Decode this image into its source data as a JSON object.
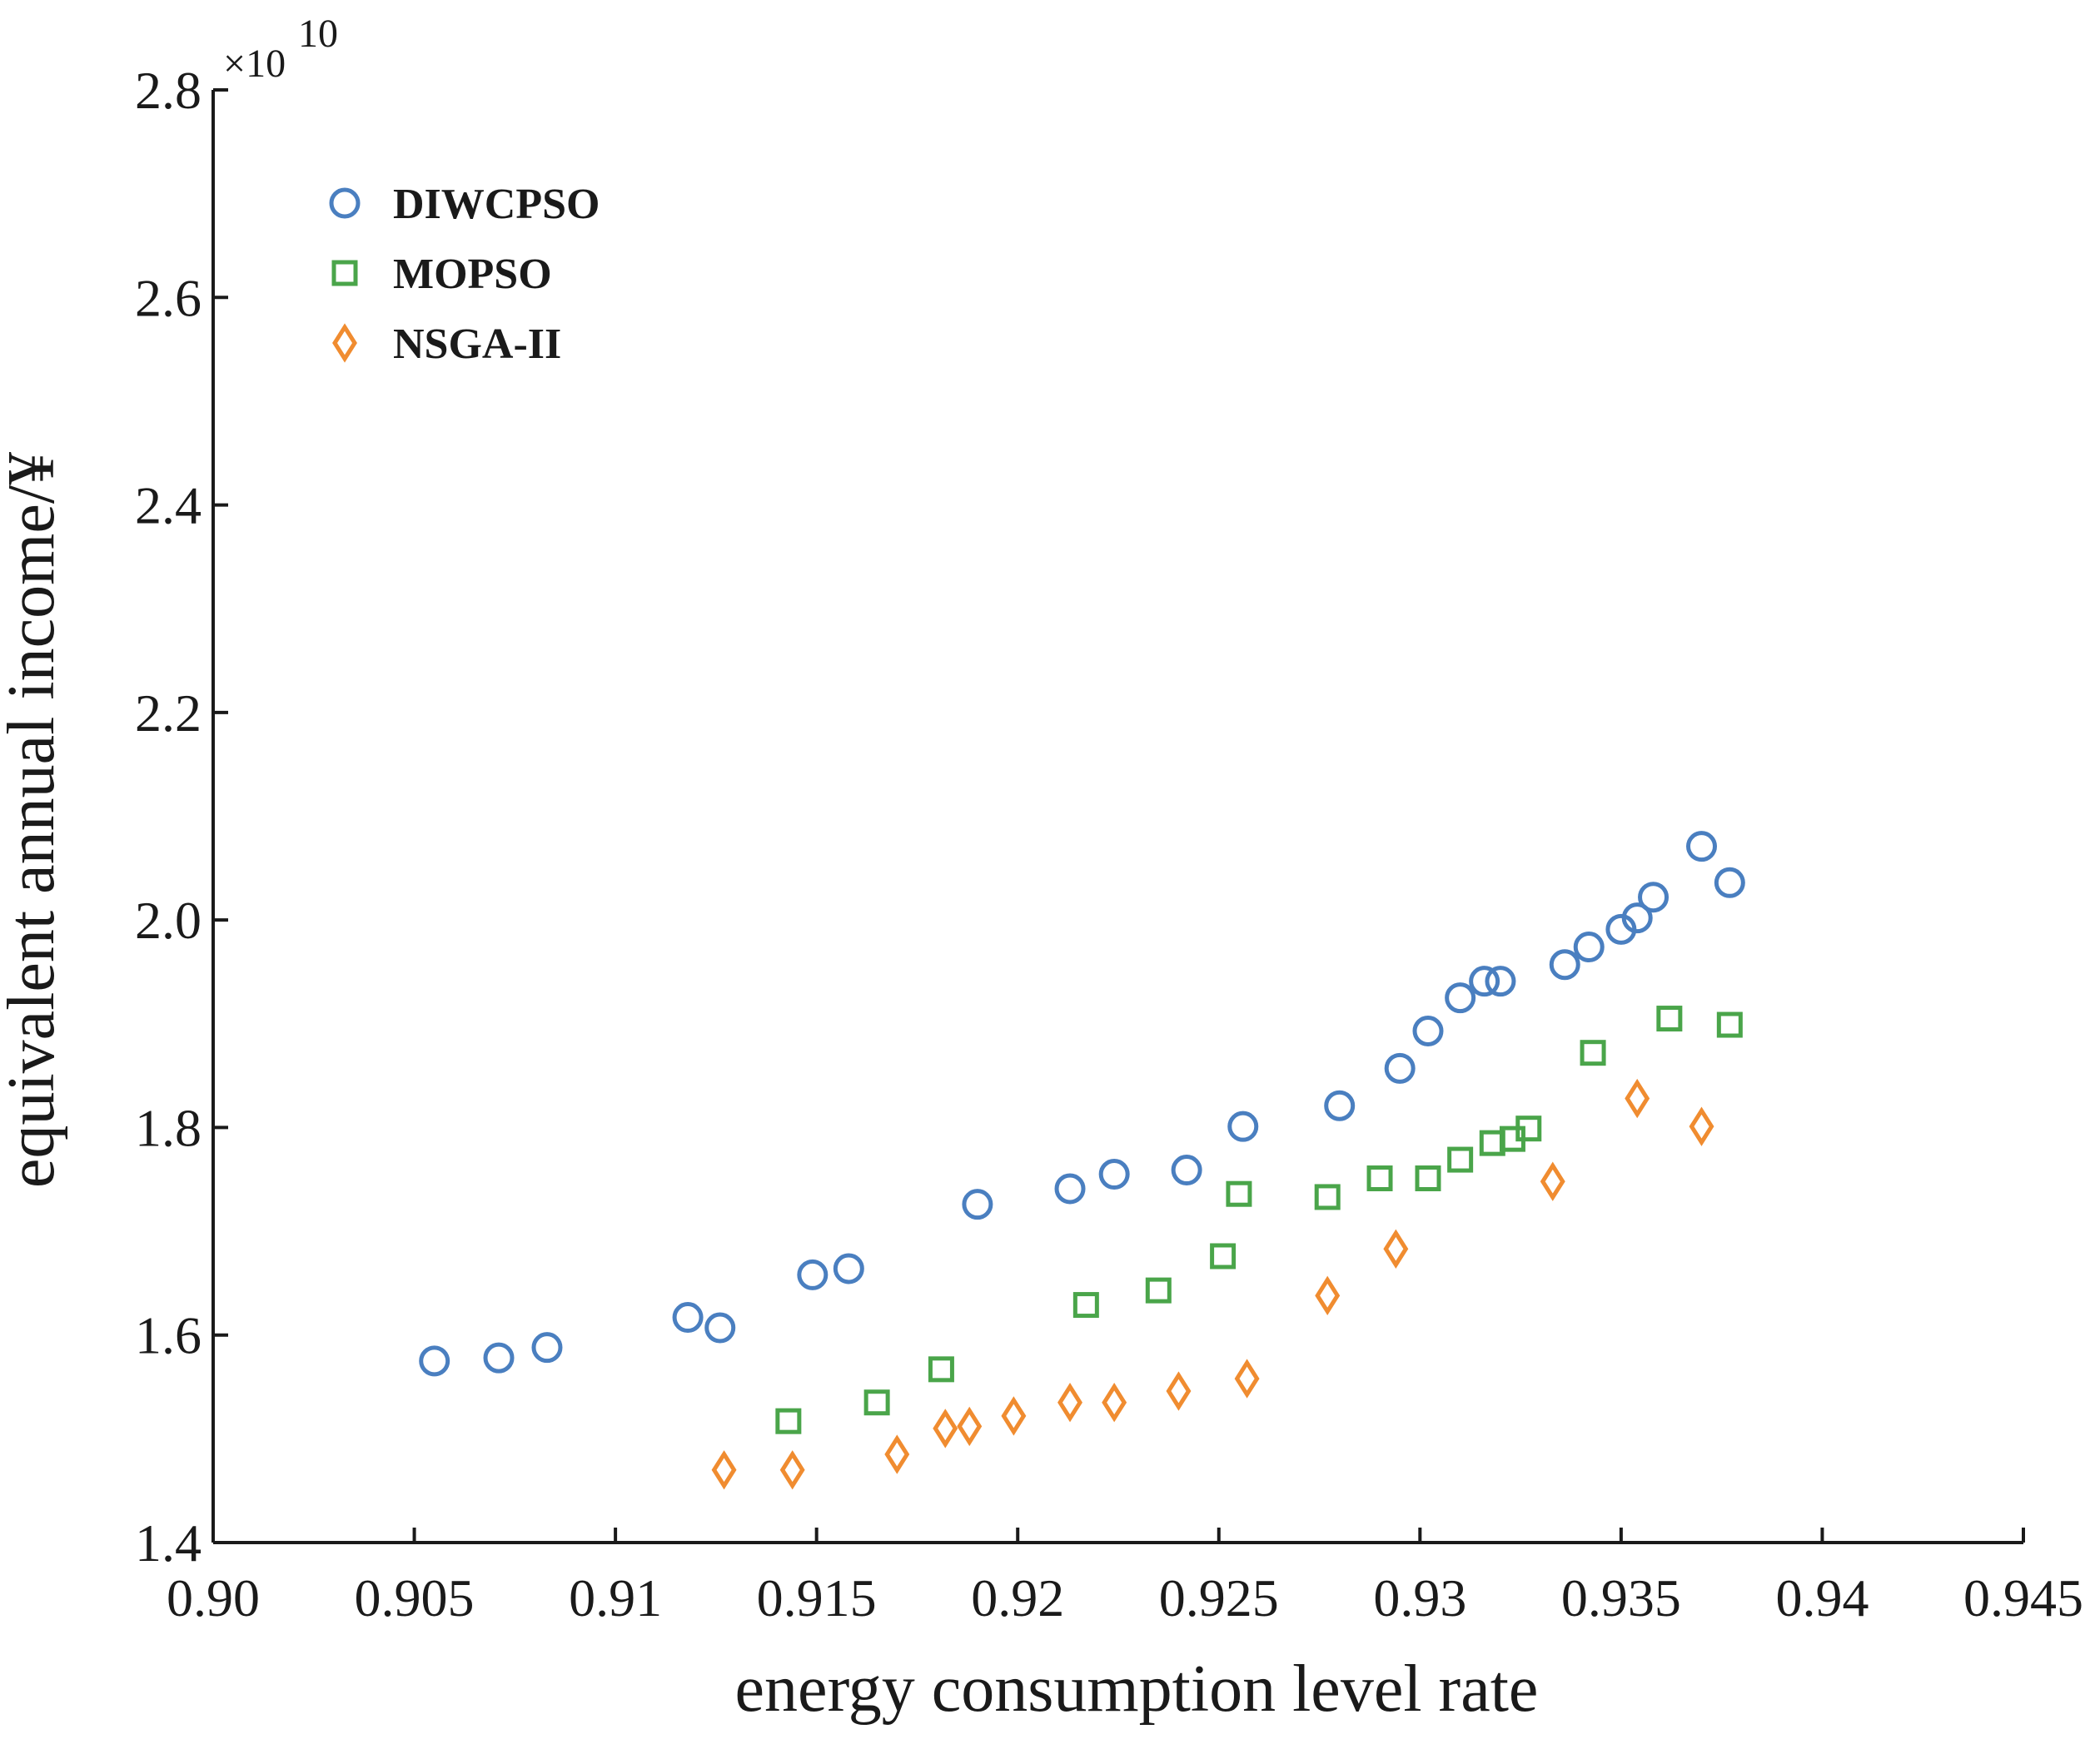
{
  "chart_data": {
    "type": "scatter",
    "title": "",
    "xlabel": "energy consumption level rate",
    "ylabel": "equivalent annual income/¥",
    "y_multiplier_base": "×10",
    "y_multiplier_exponent": "10",
    "xlim": [
      0.9,
      0.945
    ],
    "ylim": [
      1.4,
      2.8
    ],
    "x_ticks": [
      0.9,
      0.905,
      0.91,
      0.915,
      0.92,
      0.925,
      0.93,
      0.935,
      0.94,
      0.945
    ],
    "x_tick_labels": [
      "0.90",
      "0.905",
      "0.91",
      "0.915",
      "0.92",
      "0.925",
      "0.93",
      "0.935",
      "0.94",
      "0.945"
    ],
    "y_ticks": [
      1.4,
      1.6,
      1.8,
      2.0,
      2.2,
      2.4,
      2.6,
      2.8
    ],
    "y_tick_labels": [
      "1.4",
      "1.6",
      "1.8",
      "2.0",
      "2.2",
      "2.4",
      "2.6",
      "2.8"
    ],
    "grid": false,
    "legend_position": "top-left",
    "series": [
      {
        "name": "DIWCPSO",
        "marker": "circle",
        "color": "#4a7fc0",
        "points": [
          [
            0.9055,
            1.575
          ],
          [
            0.9071,
            1.578
          ],
          [
            0.9083,
            1.588
          ],
          [
            0.9118,
            1.617
          ],
          [
            0.9126,
            1.607
          ],
          [
            0.9149,
            1.658
          ],
          [
            0.9158,
            1.664
          ],
          [
            0.919,
            1.726
          ],
          [
            0.9213,
            1.741
          ],
          [
            0.9224,
            1.755
          ],
          [
            0.9242,
            1.759
          ],
          [
            0.9256,
            1.801
          ],
          [
            0.928,
            1.821
          ],
          [
            0.9295,
            1.857
          ],
          [
            0.9302,
            1.893
          ],
          [
            0.931,
            1.925
          ],
          [
            0.9316,
            1.941
          ],
          [
            0.932,
            1.941
          ],
          [
            0.9336,
            1.957
          ],
          [
            0.9342,
            1.974
          ],
          [
            0.935,
            1.991
          ],
          [
            0.9354,
            2.002
          ],
          [
            0.9358,
            2.022
          ],
          [
            0.937,
            2.071
          ],
          [
            0.9377,
            2.036
          ]
        ]
      },
      {
        "name": "MOPSO",
        "marker": "square",
        "color": "#4aa54a",
        "points": [
          [
            0.9143,
            1.517
          ],
          [
            0.9165,
            1.535
          ],
          [
            0.9181,
            1.567
          ],
          [
            0.9217,
            1.629
          ],
          [
            0.9235,
            1.643
          ],
          [
            0.9251,
            1.676
          ],
          [
            0.9255,
            1.736
          ],
          [
            0.9277,
            1.733
          ],
          [
            0.929,
            1.751
          ],
          [
            0.9302,
            1.751
          ],
          [
            0.931,
            1.769
          ],
          [
            0.9318,
            1.785
          ],
          [
            0.9323,
            1.789
          ],
          [
            0.9327,
            1.799
          ],
          [
            0.9343,
            1.872
          ],
          [
            0.9362,
            1.905
          ],
          [
            0.9377,
            1.899
          ]
        ]
      },
      {
        "name": "NSGA-II",
        "marker": "diamond",
        "color": "#f08c30",
        "points": [
          [
            0.9127,
            1.47
          ],
          [
            0.9144,
            1.47
          ],
          [
            0.917,
            1.485
          ],
          [
            0.9182,
            1.51
          ],
          [
            0.9188,
            1.512
          ],
          [
            0.9199,
            1.522
          ],
          [
            0.9213,
            1.535
          ],
          [
            0.9224,
            1.535
          ],
          [
            0.924,
            1.546
          ],
          [
            0.9257,
            1.558
          ],
          [
            0.9277,
            1.638
          ],
          [
            0.9294,
            1.683
          ],
          [
            0.9333,
            1.748
          ],
          [
            0.9354,
            1.828
          ],
          [
            0.937,
            1.801
          ]
        ]
      }
    ]
  }
}
